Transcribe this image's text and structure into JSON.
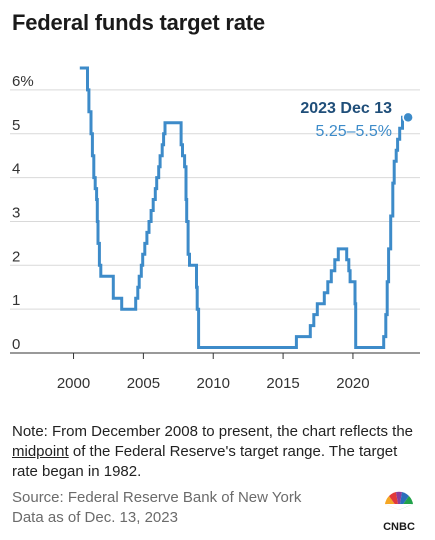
{
  "title": "Federal funds target rate",
  "note": {
    "before": "Note: From December 2008 to present, the chart reflects the ",
    "underlined": "midpoint",
    "after": " of the Federal Reserve's target range. The target rate began in 1982."
  },
  "source": {
    "line1": "Source: Federal Reserve Bank of New York",
    "line2": "Data as of Dec. 13, 2023"
  },
  "logo_text": "CNBC",
  "colors": {
    "line": "#3d8bc9",
    "annotation_date": "#1f4e79",
    "annotation_value": "#3d8bc9"
  },
  "chart_data": {
    "type": "line",
    "title": "Federal funds target rate",
    "xlabel": "",
    "ylabel": "",
    "xlim": [
      1997.6,
      2024.8
    ],
    "ylim": [
      0,
      6.5
    ],
    "x_ticks": [
      "2000",
      "2005",
      "2010",
      "2015",
      "2020"
    ],
    "y_ticks": [
      "0",
      "1",
      "2",
      "3",
      "4",
      "5",
      "6%"
    ],
    "grid": true,
    "annotation": {
      "date": "2023 Dec 13",
      "value": "5.25–5.5%",
      "x": 2023.95,
      "y": 5.375
    },
    "series": [
      {
        "step": true,
        "points": [
          [
            2000.45,
            6.5
          ],
          [
            2001.0,
            6.5
          ],
          [
            2001.0,
            6.0
          ],
          [
            2001.1,
            6.0
          ],
          [
            2001.1,
            5.5
          ],
          [
            2001.25,
            5.5
          ],
          [
            2001.25,
            5.0
          ],
          [
            2001.35,
            5.0
          ],
          [
            2001.35,
            4.5
          ],
          [
            2001.45,
            4.5
          ],
          [
            2001.45,
            4.0
          ],
          [
            2001.55,
            4.0
          ],
          [
            2001.55,
            3.75
          ],
          [
            2001.65,
            3.75
          ],
          [
            2001.65,
            3.5
          ],
          [
            2001.7,
            3.5
          ],
          [
            2001.7,
            3.0
          ],
          [
            2001.75,
            3.0
          ],
          [
            2001.75,
            2.5
          ],
          [
            2001.85,
            2.5
          ],
          [
            2001.85,
            2.0
          ],
          [
            2001.95,
            2.0
          ],
          [
            2001.95,
            1.75
          ],
          [
            2002.85,
            1.75
          ],
          [
            2002.85,
            1.25
          ],
          [
            2003.45,
            1.25
          ],
          [
            2003.45,
            1.0
          ],
          [
            2004.45,
            1.0
          ],
          [
            2004.45,
            1.25
          ],
          [
            2004.6,
            1.25
          ],
          [
            2004.6,
            1.5
          ],
          [
            2004.7,
            1.5
          ],
          [
            2004.7,
            1.75
          ],
          [
            2004.85,
            1.75
          ],
          [
            2004.85,
            2.0
          ],
          [
            2004.95,
            2.0
          ],
          [
            2004.95,
            2.25
          ],
          [
            2005.1,
            2.25
          ],
          [
            2005.1,
            2.5
          ],
          [
            2005.25,
            2.5
          ],
          [
            2005.25,
            2.75
          ],
          [
            2005.4,
            2.75
          ],
          [
            2005.4,
            3.0
          ],
          [
            2005.55,
            3.0
          ],
          [
            2005.55,
            3.25
          ],
          [
            2005.7,
            3.25
          ],
          [
            2005.7,
            3.5
          ],
          [
            2005.85,
            3.5
          ],
          [
            2005.85,
            3.75
          ],
          [
            2005.95,
            3.75
          ],
          [
            2005.95,
            4.0
          ],
          [
            2006.1,
            4.0
          ],
          [
            2006.1,
            4.25
          ],
          [
            2006.2,
            4.25
          ],
          [
            2006.2,
            4.5
          ],
          [
            2006.35,
            4.5
          ],
          [
            2006.35,
            4.75
          ],
          [
            2006.45,
            4.75
          ],
          [
            2006.45,
            5.0
          ],
          [
            2006.55,
            5.0
          ],
          [
            2006.55,
            5.25
          ],
          [
            2007.7,
            5.25
          ],
          [
            2007.7,
            4.75
          ],
          [
            2007.8,
            4.75
          ],
          [
            2007.8,
            4.5
          ],
          [
            2007.95,
            4.5
          ],
          [
            2007.95,
            4.25
          ],
          [
            2008.05,
            4.25
          ],
          [
            2008.05,
            3.5
          ],
          [
            2008.1,
            3.5
          ],
          [
            2008.1,
            3.0
          ],
          [
            2008.2,
            3.0
          ],
          [
            2008.2,
            2.25
          ],
          [
            2008.3,
            2.25
          ],
          [
            2008.3,
            2.0
          ],
          [
            2008.8,
            2.0
          ],
          [
            2008.8,
            1.5
          ],
          [
            2008.85,
            1.5
          ],
          [
            2008.85,
            1.0
          ],
          [
            2008.95,
            1.0
          ],
          [
            2008.95,
            0.125
          ],
          [
            2015.95,
            0.125
          ],
          [
            2015.95,
            0.375
          ],
          [
            2016.95,
            0.375
          ],
          [
            2016.95,
            0.625
          ],
          [
            2017.2,
            0.625
          ],
          [
            2017.2,
            0.875
          ],
          [
            2017.45,
            0.875
          ],
          [
            2017.45,
            1.125
          ],
          [
            2017.95,
            1.125
          ],
          [
            2017.95,
            1.375
          ],
          [
            2018.2,
            1.375
          ],
          [
            2018.2,
            1.625
          ],
          [
            2018.45,
            1.625
          ],
          [
            2018.45,
            1.875
          ],
          [
            2018.7,
            1.875
          ],
          [
            2018.7,
            2.125
          ],
          [
            2018.95,
            2.125
          ],
          [
            2018.95,
            2.375
          ],
          [
            2019.55,
            2.375
          ],
          [
            2019.55,
            2.125
          ],
          [
            2019.7,
            2.125
          ],
          [
            2019.7,
            1.875
          ],
          [
            2019.8,
            1.875
          ],
          [
            2019.8,
            1.625
          ],
          [
            2020.15,
            1.625
          ],
          [
            2020.15,
            1.125
          ],
          [
            2020.2,
            1.125
          ],
          [
            2020.2,
            0.125
          ],
          [
            2022.2,
            0.125
          ],
          [
            2022.2,
            0.375
          ],
          [
            2022.35,
            0.375
          ],
          [
            2022.35,
            0.875
          ],
          [
            2022.45,
            0.875
          ],
          [
            2022.45,
            1.625
          ],
          [
            2022.55,
            1.625
          ],
          [
            2022.55,
            2.375
          ],
          [
            2022.7,
            2.375
          ],
          [
            2022.7,
            3.125
          ],
          [
            2022.85,
            3.125
          ],
          [
            2022.85,
            3.875
          ],
          [
            2022.95,
            3.875
          ],
          [
            2022.95,
            4.375
          ],
          [
            2023.1,
            4.375
          ],
          [
            2023.1,
            4.625
          ],
          [
            2023.2,
            4.625
          ],
          [
            2023.2,
            4.875
          ],
          [
            2023.35,
            4.875
          ],
          [
            2023.35,
            5.125
          ],
          [
            2023.55,
            5.125
          ],
          [
            2023.55,
            5.375
          ],
          [
            2023.95,
            5.375
          ]
        ]
      }
    ]
  }
}
